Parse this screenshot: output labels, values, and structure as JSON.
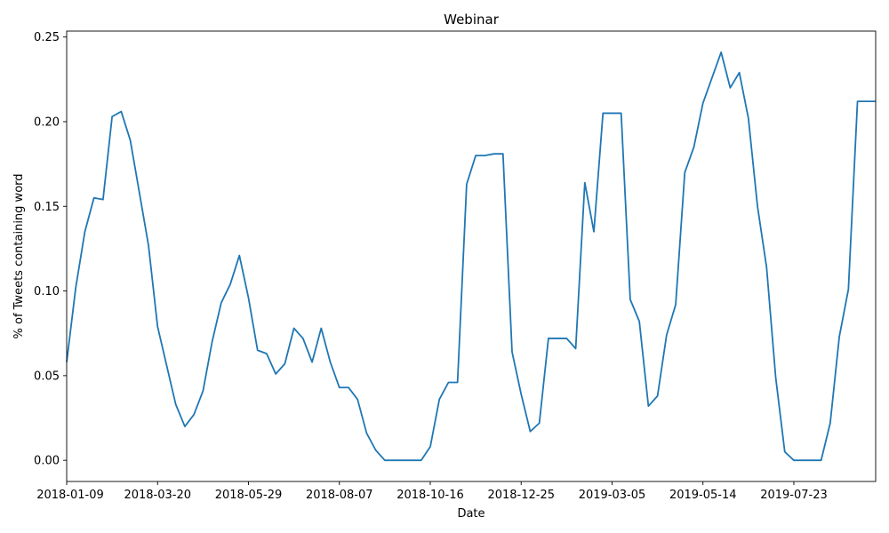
{
  "chart_data": {
    "type": "line",
    "title": "Webinar",
    "xlabel": "Date",
    "ylabel": "% of Tweets containing word",
    "ylim": [
      -0.0125,
      0.2535
    ],
    "xlim": [
      "2018-01-09",
      "2019-09-24"
    ],
    "grid": false,
    "line_color": "#1f77b4",
    "x_ticks": [
      "2018-01-09",
      "2018-03-20",
      "2018-05-29",
      "2018-08-07",
      "2018-10-16",
      "2018-12-25",
      "2019-03-05",
      "2019-05-14",
      "2019-07-23"
    ],
    "y_ticks": [
      "0.00",
      "0.05",
      "0.10",
      "0.15",
      "0.20",
      "0.25"
    ],
    "y_tick_values": [
      0,
      0.05,
      0.1,
      0.15,
      0.2,
      0.25
    ],
    "series": [
      {
        "x": [
          "2018-01-09",
          "2018-01-16",
          "2018-01-23",
          "2018-01-30",
          "2018-02-06",
          "2018-02-13",
          "2018-02-20",
          "2018-02-27",
          "2018-03-06",
          "2018-03-13",
          "2018-03-20",
          "2018-03-27",
          "2018-04-03",
          "2018-04-10",
          "2018-04-17",
          "2018-04-24",
          "2018-05-01",
          "2018-05-08",
          "2018-05-15",
          "2018-05-22",
          "2018-05-29",
          "2018-06-05",
          "2018-06-12",
          "2018-06-19",
          "2018-06-26",
          "2018-07-03",
          "2018-07-10",
          "2018-07-17",
          "2018-07-24",
          "2018-07-31",
          "2018-08-07",
          "2018-08-14",
          "2018-08-21",
          "2018-08-28",
          "2018-09-04",
          "2018-09-11",
          "2018-09-18",
          "2018-09-25",
          "2018-10-02",
          "2018-10-09",
          "2018-10-16",
          "2018-10-23",
          "2018-10-30",
          "2018-11-06",
          "2018-11-13",
          "2018-11-20",
          "2018-11-27",
          "2018-12-04",
          "2018-12-11",
          "2018-12-18",
          "2018-12-25",
          "2019-01-01",
          "2019-01-08",
          "2019-01-15",
          "2019-01-22",
          "2019-01-29",
          "2019-02-05",
          "2019-02-12",
          "2019-02-19",
          "2019-02-26",
          "2019-03-05",
          "2019-03-12",
          "2019-03-19",
          "2019-03-26",
          "2019-04-02",
          "2019-04-09",
          "2019-04-16",
          "2019-04-23",
          "2019-04-30",
          "2019-05-07",
          "2019-05-14",
          "2019-05-21",
          "2019-05-28",
          "2019-06-04",
          "2019-06-11",
          "2019-06-18",
          "2019-06-25",
          "2019-07-02",
          "2019-07-09",
          "2019-07-16",
          "2019-07-23",
          "2019-07-30",
          "2019-08-06",
          "2019-08-13",
          "2019-08-20",
          "2019-08-27",
          "2019-09-03",
          "2019-09-10",
          "2019-09-17",
          "2019-09-24"
        ],
        "values": [
          0.058,
          0.102,
          0.135,
          0.155,
          0.154,
          0.203,
          0.206,
          0.189,
          0.158,
          0.127,
          0.079,
          0.056,
          0.033,
          0.02,
          0.027,
          0.041,
          0.07,
          0.093,
          0.104,
          0.121,
          0.096,
          0.065,
          0.063,
          0.051,
          0.057,
          0.078,
          0.072,
          0.058,
          0.078,
          0.058,
          0.043,
          0.043,
          0.036,
          0.016,
          0.006,
          0.0,
          0.0,
          0.0,
          0.0,
          0.0,
          0.008,
          0.036,
          0.046,
          0.046,
          0.163,
          0.18,
          0.18,
          0.181,
          0.181,
          0.064,
          0.039,
          0.017,
          0.022,
          0.072,
          0.072,
          0.072,
          0.066,
          0.164,
          0.135,
          0.205,
          0.205,
          0.205,
          0.095,
          0.082,
          0.032,
          0.038,
          0.074,
          0.092,
          0.17,
          0.185,
          0.211,
          0.226,
          0.241,
          0.22,
          0.229,
          0.202,
          0.15,
          0.114,
          0.049,
          0.005,
          0.0,
          0.0,
          0.0,
          0.0,
          0.022,
          0.073,
          0.101,
          0.212,
          0.212,
          0.212
        ]
      }
    ]
  }
}
